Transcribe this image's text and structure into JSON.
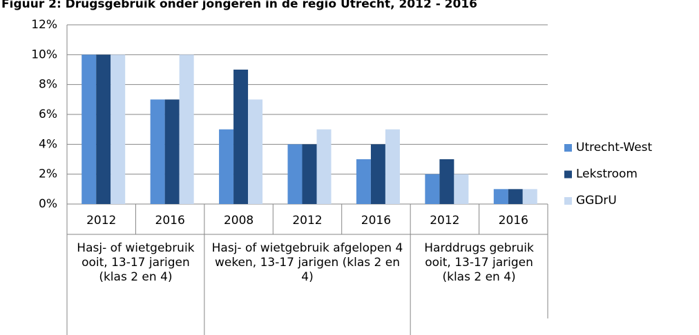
{
  "chart_data": {
    "type": "bar",
    "title": "Figuur 2: Drugsgebruik onder jongeren in de regio Utrecht, 2012 - 2016",
    "groups": [
      {
        "label": "Hasj- of wietgebruik ooit, 13-17 jarigen (klas 2 en 4)",
        "categories": [
          "2012",
          "2016"
        ]
      },
      {
        "label": "Hasj- of wietgebruik afgelopen 4 weken, 13-17 jarigen (klas 2 en 4)",
        "categories": [
          "2008",
          "2012",
          "2016"
        ]
      },
      {
        "label": "Harddrugs gebruik ooit, 13-17 jarigen (klas 2 en 4)",
        "categories": [
          "2012",
          "2016"
        ]
      }
    ],
    "series": [
      {
        "name": "Utrecht-West",
        "color": "#558ed5",
        "values": [
          10,
          7,
          5,
          4,
          3,
          2,
          1
        ]
      },
      {
        "name": "Lekstroom",
        "color": "#1f497d",
        "values": [
          10,
          7,
          9,
          4,
          4,
          3,
          1
        ]
      },
      {
        "name": "GGDrU",
        "color": "#c6d9f1",
        "values": [
          10,
          10,
          7,
          5,
          5,
          2,
          1
        ]
      }
    ],
    "ylim": [
      0,
      12
    ],
    "yticks": [
      {
        "value": 0,
        "label": "0%"
      },
      {
        "value": 2,
        "label": "2%"
      },
      {
        "value": 4,
        "label": "4%"
      },
      {
        "value": 6,
        "label": "6%"
      },
      {
        "value": 8,
        "label": "8%"
      },
      {
        "value": 10,
        "label": "10%"
      },
      {
        "value": 12,
        "label": "12%"
      }
    ],
    "grid": true,
    "legend": "right"
  }
}
